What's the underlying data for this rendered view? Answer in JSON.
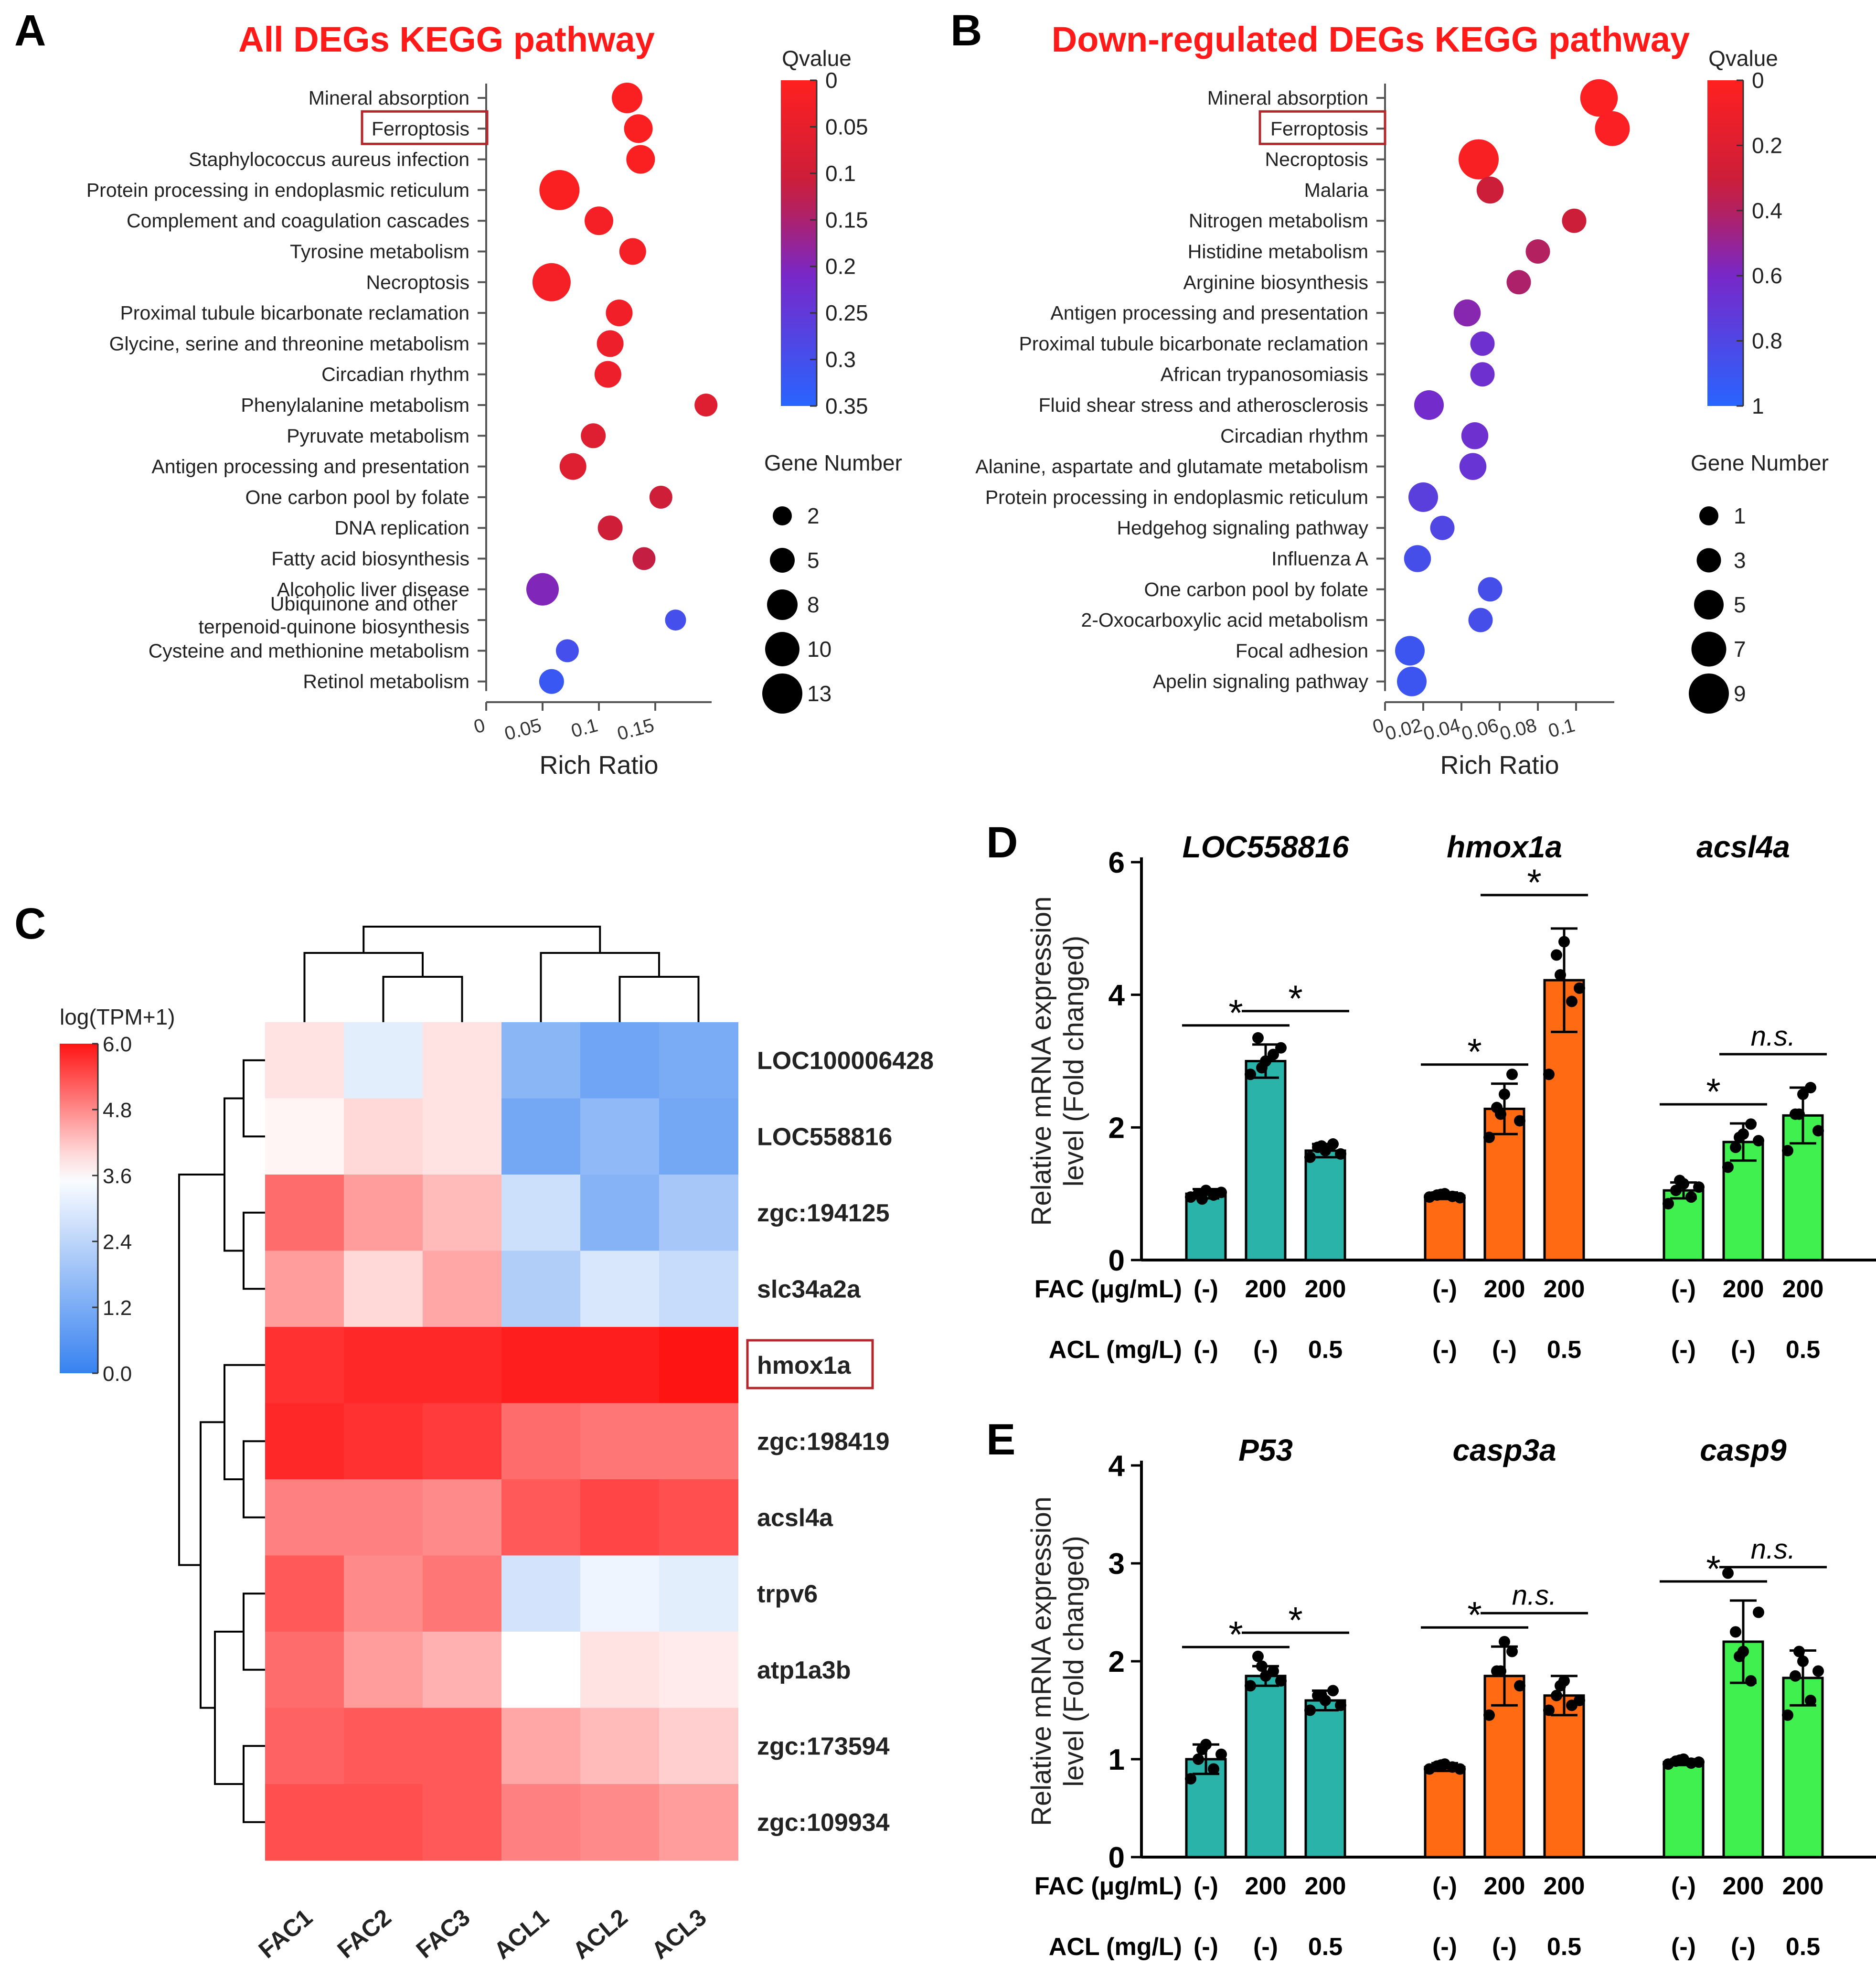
{
  "panels": {
    "A": "A",
    "B": "B",
    "C": "C",
    "D": "D",
    "E": "E"
  },
  "chart_data": [
    {
      "id": "A",
      "type": "scatter",
      "title": "All DEGs KEGG pathway",
      "xlabel": "Rich Ratio",
      "ylabel": "",
      "xlim": [
        0,
        0.2
      ],
      "xticks": [
        "0",
        "0.05",
        "0.1",
        "0.15"
      ],
      "xtick_values": [
        0,
        0.05,
        0.1,
        0.15
      ],
      "color_title": "Qvalue",
      "color_range": [
        0,
        0.35
      ],
      "color_ticks": [
        "0",
        "0.05",
        "0.1",
        "0.15",
        "0.2",
        "0.25",
        "0.3",
        "0.35"
      ],
      "size_title": "Gene Number",
      "size_ticks": [
        2,
        5,
        8,
        10,
        13
      ],
      "highlight": "Ferroptosis",
      "pathways": [
        "Mineral absorption",
        "Ferroptosis",
        "Staphylococcus aureus infection",
        "Protein processing in endoplasmic reticulum",
        "Complement and coagulation cascades",
        "Tyrosine metabolism",
        "Necroptosis",
        "Proximal tubule bicarbonate reclamation",
        "Glycine, serine and threonine metabolism",
        "Circadian rhythm",
        "Phenylalanine metabolism",
        "Pyruvate metabolism",
        "Antigen processing and presentation",
        "One carbon pool by folate",
        "DNA replication",
        "Fatty acid biosynthesis",
        "Alcoholic liver disease",
        "Ubiquinone and other terpenoid-quinone biosynthesis",
        "Cysteine and methionine metabolism",
        "Retinol metabolism"
      ],
      "rich_ratio": [
        0.125,
        0.135,
        0.137,
        0.065,
        0.1,
        0.13,
        0.058,
        0.118,
        0.11,
        0.108,
        0.195,
        0.095,
        0.077,
        0.155,
        0.11,
        0.14,
        0.05,
        0.168,
        0.072,
        0.058
      ],
      "qvalue": [
        0.01,
        0.01,
        0.01,
        0.01,
        0.02,
        0.02,
        0.02,
        0.03,
        0.04,
        0.04,
        0.07,
        0.07,
        0.07,
        0.1,
        0.1,
        0.12,
        0.2,
        0.3,
        0.3,
        0.32
      ],
      "gene_number": [
        8,
        7,
        7,
        13,
        7,
        6,
        12,
        6,
        6,
        6,
        4,
        5,
        6,
        4,
        5,
        4,
        9,
        3,
        4,
        5
      ]
    },
    {
      "id": "B",
      "type": "scatter",
      "title": "Down-regulated DEGs KEGG pathway",
      "xlabel": "Rich Ratio",
      "ylabel": "",
      "xlim": [
        0,
        0.12
      ],
      "xticks": [
        "0",
        "0.02",
        "0.04",
        "0.06",
        "0.08",
        "0.1"
      ],
      "xtick_values": [
        0,
        0.02,
        0.04,
        0.06,
        0.08,
        0.1
      ],
      "color_title": "Qvalue",
      "color_range": [
        0,
        1
      ],
      "color_ticks": [
        "0",
        "0.2",
        "0.4",
        "0.6",
        "0.8",
        "1"
      ],
      "size_title": "Gene Number",
      "size_ticks": [
        1,
        3,
        5,
        7,
        9
      ],
      "highlight": "Ferroptosis",
      "pathways": [
        "Mineral absorption",
        "Ferroptosis",
        "Necroptosis",
        "Malaria",
        "Nitrogen metabolism",
        "Histidine metabolism",
        "Arginine biosynthesis",
        "Antigen processing and presentation",
        "Proximal tubule bicarbonate reclamation",
        "African trypanosomiasis",
        "Fluid shear stress and atherosclerosis",
        "Circadian rhythm",
        "Alanine, aspartate and glutamate metabolism",
        "Protein processing in endoplasmic reticulum",
        "Hedgehog signaling pathway",
        "Influenza A",
        "One carbon pool by folate",
        "2-Oxocarboxylic acid metabolism",
        "Focal adhesion",
        "Apelin signaling pathway"
      ],
      "rich_ratio": [
        0.112,
        0.119,
        0.049,
        0.055,
        0.099,
        0.08,
        0.07,
        0.043,
        0.051,
        0.051,
        0.023,
        0.047,
        0.046,
        0.02,
        0.03,
        0.017,
        0.055,
        0.05,
        0.013,
        0.014
      ],
      "qvalue": [
        0.02,
        0.03,
        0.04,
        0.3,
        0.3,
        0.4,
        0.42,
        0.55,
        0.65,
        0.65,
        0.62,
        0.65,
        0.68,
        0.75,
        0.8,
        0.85,
        0.85,
        0.85,
        0.9,
        0.9
      ],
      "gene_number": [
        8,
        7,
        9,
        4,
        3,
        3,
        3,
        4,
        3,
        3,
        5,
        4,
        4,
        5,
        3,
        4,
        3,
        3,
        5,
        5
      ]
    },
    {
      "id": "C",
      "type": "heatmap",
      "title": "log(TPM+1)",
      "color_range": [
        0,
        6
      ],
      "color_ticks": [
        "6.0",
        "4.8",
        "3.6",
        "2.4",
        "1.2",
        "0.0"
      ],
      "columns": [
        "FAC1",
        "FAC2",
        "FAC3",
        "ACL1",
        "ACL2",
        "ACL3"
      ],
      "rows": [
        "LOC100006428",
        "LOC558816",
        "zgc:194125",
        "slc34a2a",
        "hmox1a",
        "zgc:198419",
        "acsl4a",
        "trpv6",
        "atp1a3b",
        "zgc:173594",
        "zgc:109934"
      ],
      "highlight": "hmox1a",
      "values": [
        [
          3.9,
          3.1,
          3.9,
          1.5,
          1.0,
          1.2
        ],
        [
          3.7,
          4.0,
          3.9,
          1.1,
          1.6,
          1.1
        ],
        [
          5.1,
          4.6,
          4.3,
          2.7,
          1.4,
          2.0
        ],
        [
          4.6,
          4.0,
          4.5,
          2.2,
          2.9,
          2.6
        ],
        [
          5.7,
          5.8,
          5.8,
          5.9,
          5.9,
          6.0
        ],
        [
          5.8,
          5.7,
          5.6,
          5.1,
          5.0,
          5.0
        ],
        [
          4.9,
          4.9,
          4.8,
          5.3,
          5.5,
          5.4
        ],
        [
          5.3,
          4.8,
          5.0,
          2.8,
          3.3,
          3.1
        ],
        [
          5.1,
          4.6,
          4.4,
          3.6,
          3.9,
          3.8
        ],
        [
          5.2,
          5.3,
          5.3,
          4.5,
          4.3,
          4.1
        ],
        [
          5.4,
          5.4,
          5.3,
          4.9,
          4.8,
          4.6
        ]
      ]
    },
    {
      "id": "D",
      "type": "bar",
      "ylabel": "Relative mRNA expression level (Fold changed)",
      "ylim": [
        0,
        6
      ],
      "yticks": [
        "0",
        "2",
        "4",
        "6"
      ],
      "ytick_values": [
        0,
        2,
        4,
        6
      ],
      "row_labels": [
        "FAC (μg/mL)",
        "ACL (mg/L)"
      ],
      "groups": [
        {
          "gene": "LOC558816",
          "color": "#2ab3a8",
          "values": [
            1.0,
            3.0,
            1.65
          ],
          "errors": [
            0.07,
            0.25,
            0.1
          ],
          "points": [
            [
              0.95,
              1.0,
              1.05,
              0.98,
              1.02,
              0.92
            ],
            [
              2.8,
              3.35,
              3.0,
              3.1,
              3.2,
              2.9
            ],
            [
              1.55,
              1.7,
              1.65,
              1.75,
              1.6,
              1.72
            ]
          ],
          "fac": [
            "(-)",
            "200",
            "200"
          ],
          "acl": [
            "(-)",
            "(-)",
            "0.5"
          ],
          "sig": [
            {
              "from": 0,
              "to": 1,
              "label": "*"
            },
            {
              "from": 1,
              "to": 2,
              "label": "*"
            }
          ]
        },
        {
          "gene": "hmox1a",
          "color": "#ff6a13",
          "values": [
            0.97,
            2.28,
            4.22
          ],
          "errors": [
            0.05,
            0.38,
            0.78
          ],
          "points": [
            [
              0.95,
              0.98,
              1.0,
              0.96,
              0.94,
              0.99
            ],
            [
              1.85,
              2.3,
              2.5,
              2.8,
              2.1,
              2.2
            ],
            [
              2.8,
              4.6,
              4.8,
              3.9,
              4.1,
              4.3
            ]
          ],
          "fac": [
            "(-)",
            "200",
            "200"
          ],
          "acl": [
            "(-)",
            "(-)",
            "0.5"
          ],
          "sig": [
            {
              "from": 0,
              "to": 1,
              "label": "*"
            },
            {
              "from": 1,
              "to": 2,
              "label": "*"
            }
          ]
        },
        {
          "gene": "acsl4a",
          "color": "#3ff04f",
          "values": [
            1.05,
            1.78,
            2.18
          ],
          "errors": [
            0.12,
            0.28,
            0.42
          ],
          "points": [
            [
              0.85,
              1.05,
              1.15,
              0.95,
              1.1,
              1.2
            ],
            [
              1.4,
              1.7,
              1.9,
              2.05,
              1.8,
              1.85
            ],
            [
              1.65,
              2.2,
              2.5,
              2.6,
              1.95,
              2.2
            ]
          ],
          "fac": [
            "(-)",
            "200",
            "200"
          ],
          "acl": [
            "(-)",
            "(-)",
            "0.5"
          ],
          "sig": [
            {
              "from": 0,
              "to": 1,
              "label": "*"
            },
            {
              "from": 1,
              "to": 2,
              "label": "n.s."
            }
          ]
        }
      ]
    },
    {
      "id": "E",
      "type": "bar",
      "ylabel": "Relative mRNA expression level (Fold changed)",
      "ylim": [
        0,
        4
      ],
      "yticks": [
        "0",
        "1",
        "2",
        "3",
        "4"
      ],
      "ytick_values": [
        0,
        1,
        2,
        3,
        4
      ],
      "row_labels": [
        "FAC (μg/mL)",
        "ACL (mg/L)"
      ],
      "groups": [
        {
          "gene": "P53",
          "color": "#2ab3a8",
          "values": [
            1.0,
            1.85,
            1.6
          ],
          "errors": [
            0.15,
            0.1,
            0.1
          ],
          "points": [
            [
              0.8,
              1.0,
              1.15,
              0.9,
              1.05,
              1.1
            ],
            [
              1.75,
              2.05,
              1.85,
              1.9,
              1.8,
              1.95
            ],
            [
              1.5,
              1.65,
              1.6,
              1.7,
              1.55,
              1.65
            ]
          ],
          "fac": [
            "(-)",
            "200",
            "200"
          ],
          "acl": [
            "(-)",
            "(-)",
            "0.5"
          ],
          "sig": [
            {
              "from": 0,
              "to": 1,
              "label": "*"
            },
            {
              "from": 1,
              "to": 2,
              "label": "*"
            }
          ]
        },
        {
          "gene": "casp3a",
          "color": "#ff6a13",
          "values": [
            0.92,
            1.85,
            1.65
          ],
          "errors": [
            0.04,
            0.3,
            0.2
          ],
          "points": [
            [
              0.9,
              0.93,
              0.95,
              0.92,
              0.9,
              0.94
            ],
            [
              1.45,
              1.9,
              2.2,
              2.1,
              1.75,
              1.9
            ],
            [
              1.5,
              1.65,
              1.8,
              1.55,
              1.6,
              1.75
            ]
          ],
          "fac": [
            "(-)",
            "200",
            "200"
          ],
          "acl": [
            "(-)",
            "(-)",
            "0.5"
          ],
          "sig": [
            {
              "from": 0,
              "to": 1,
              "label": "*"
            },
            {
              "from": 1,
              "to": 2,
              "label": "n.s."
            }
          ]
        },
        {
          "gene": "casp9",
          "color": "#3ff04f",
          "values": [
            0.97,
            2.2,
            1.83
          ],
          "errors": [
            0.03,
            0.42,
            0.28
          ],
          "points": [
            [
              0.95,
              0.98,
              1.0,
              0.96,
              0.97,
              0.99
            ],
            [
              2.9,
              2.3,
              2.1,
              1.8,
              2.5,
              2.05
            ],
            [
              1.45,
              1.85,
              2.0,
              1.6,
              1.9,
              2.1
            ]
          ],
          "fac": [
            "(-)",
            "200",
            "200"
          ],
          "acl": [
            "(-)",
            "(-)",
            "0.5"
          ],
          "sig": [
            {
              "from": 0,
              "to": 1,
              "label": "*"
            },
            {
              "from": 1,
              "to": 2,
              "label": "n.s."
            }
          ]
        }
      ]
    }
  ]
}
